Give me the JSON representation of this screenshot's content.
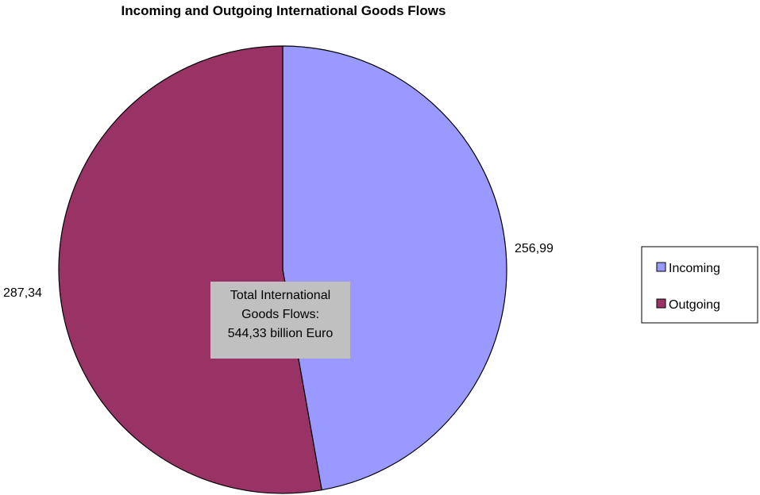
{
  "chart_data": {
    "type": "pie",
    "title": "Incoming and Outgoing International Goods Flows",
    "categories": [
      "Incoming",
      "Outgoing"
    ],
    "values": [
      256.99,
      287.34
    ],
    "value_labels": [
      "256,99",
      "287,34"
    ],
    "colors": [
      "#9999ff",
      "#993366"
    ],
    "start_angle_deg": 0,
    "direction": "clockwise",
    "legend_position": "right",
    "annotation": {
      "lines": [
        "Total International",
        "Goods Flows:",
        "544,33 billion Euro"
      ],
      "background": "#c0c0c0"
    }
  }
}
